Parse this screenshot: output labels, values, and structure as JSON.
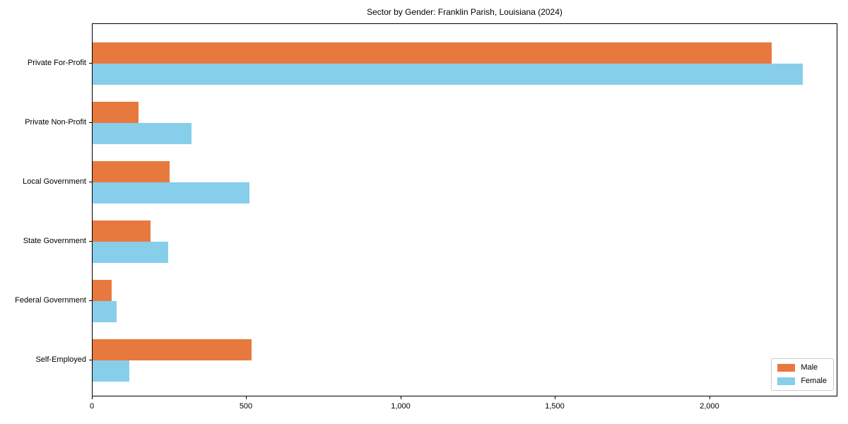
{
  "chart_data": {
    "type": "bar",
    "orientation": "horizontal",
    "title": "Sector by Gender: Franklin Parish, Louisiana (2024)",
    "xlabel": "",
    "ylabel": "",
    "categories": [
      "Private For-Profit",
      "Private Non-Profit",
      "Local Government",
      "State Government",
      "Federal Government",
      "Self-Employed"
    ],
    "series": [
      {
        "name": "Male",
        "color": "#e8793e",
        "values": [
          2200,
          148,
          250,
          188,
          62,
          515
        ]
      },
      {
        "name": "Female",
        "color": "#87ceeb",
        "values": [
          2300,
          320,
          508,
          245,
          78,
          120
        ]
      }
    ],
    "xlim": [
      0,
      2415
    ],
    "x_ticks": [
      {
        "value": 0,
        "label": "0"
      },
      {
        "value": 500,
        "label": "500"
      },
      {
        "value": 1000,
        "label": "1,000"
      },
      {
        "value": 1500,
        "label": "1,500"
      },
      {
        "value": 2000,
        "label": "2,000"
      }
    ],
    "grid": false,
    "legend": {
      "position": "lower right",
      "entries": [
        "Male",
        "Female"
      ]
    }
  }
}
